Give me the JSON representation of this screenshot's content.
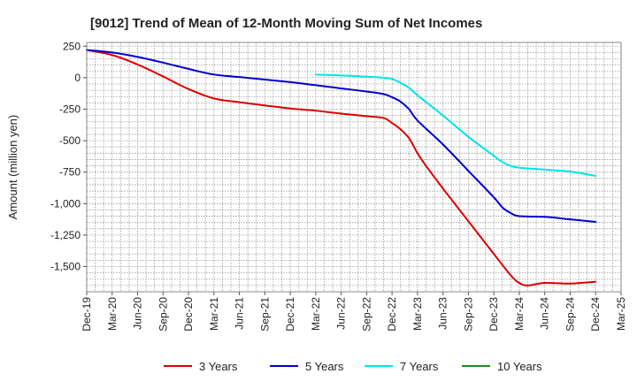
{
  "chart_data": {
    "type": "line",
    "title": "[9012]  Trend of Mean of 12-Month Moving Sum of Net Incomes",
    "xlabel": "",
    "ylabel": "Amount (million yen)",
    "x_ticks": [
      "Dec-19",
      "Mar-20",
      "Jun-20",
      "Sep-20",
      "Dec-20",
      "Mar-21",
      "Jun-21",
      "Sep-21",
      "Dec-21",
      "Mar-22",
      "Jun-22",
      "Sep-22",
      "Dec-22",
      "Mar-23",
      "Jun-23",
      "Sep-23",
      "Dec-23",
      "Mar-24",
      "Jun-24",
      "Sep-24",
      "Dec-24",
      "Mar-25"
    ],
    "y_ticks": [
      250,
      0,
      -250,
      -500,
      -750,
      -1000,
      -1250,
      -1500
    ],
    "y_tick_labels": [
      "250",
      "0",
      "-250",
      "-500",
      "-750",
      "-1,000",
      "-1,250",
      "-1,500"
    ],
    "ylim": [
      -1700,
      280
    ],
    "grid": true,
    "legend_position": "bottom",
    "series": [
      {
        "name": "3 Years",
        "color": "#dd0000",
        "points": [
          [
            "Dec-19",
            220
          ],
          [
            "Mar-20",
            180
          ],
          [
            "Jun-20",
            105
          ],
          [
            "Sep-20",
            10
          ],
          [
            "Dec-20",
            -90
          ],
          [
            "Mar-21",
            -165
          ],
          [
            "Jun-21",
            -195
          ],
          [
            "Sep-21",
            -220
          ],
          [
            "Dec-21",
            -245
          ],
          [
            "Mar-22",
            -262
          ],
          [
            "Jun-22",
            -285
          ],
          [
            "Sep-22",
            -305
          ],
          [
            "Nov-22",
            -320
          ],
          [
            "Dec-22",
            -360
          ],
          [
            "Jan-23",
            -410
          ],
          [
            "Feb-23",
            -480
          ],
          [
            "Mar-23",
            -600
          ],
          [
            "Apr-23",
            -700
          ],
          [
            "Jun-23",
            -880
          ],
          [
            "Sep-23",
            -1140
          ],
          [
            "Dec-23",
            -1400
          ],
          [
            "Feb-24",
            -1570
          ],
          [
            "Mar-24",
            -1630
          ],
          [
            "Apr-24",
            -1650
          ],
          [
            "Jun-24",
            -1630
          ],
          [
            "Sep-24",
            -1635
          ],
          [
            "Dec-24",
            -1620
          ]
        ]
      },
      {
        "name": "5 Years",
        "color": "#0000cc",
        "points": [
          [
            "Dec-19",
            220
          ],
          [
            "Mar-20",
            200
          ],
          [
            "Jun-20",
            165
          ],
          [
            "Sep-20",
            120
          ],
          [
            "Dec-20",
            70
          ],
          [
            "Mar-21",
            25
          ],
          [
            "Jun-21",
            5
          ],
          [
            "Sep-21",
            -15
          ],
          [
            "Dec-21",
            -35
          ],
          [
            "Mar-22",
            -60
          ],
          [
            "Jun-22",
            -85
          ],
          [
            "Sep-22",
            -110
          ],
          [
            "Nov-22",
            -130
          ],
          [
            "Dec-22",
            -155
          ],
          [
            "Jan-23",
            -190
          ],
          [
            "Feb-23",
            -250
          ],
          [
            "Mar-23",
            -340
          ],
          [
            "Jun-23",
            -530
          ],
          [
            "Sep-23",
            -740
          ],
          [
            "Dec-23",
            -950
          ],
          [
            "Jan-24",
            -1030
          ],
          [
            "Feb-24",
            -1075
          ],
          [
            "Mar-24",
            -1100
          ],
          [
            "Jun-24",
            -1105
          ],
          [
            "Sep-24",
            -1125
          ],
          [
            "Dec-24",
            -1145
          ]
        ]
      },
      {
        "name": "7 Years",
        "color": "#00e5e5",
        "points": [
          [
            "Mar-22",
            25
          ],
          [
            "Jun-22",
            18
          ],
          [
            "Sep-22",
            8
          ],
          [
            "Nov-22",
            0
          ],
          [
            "Dec-22",
            -10
          ],
          [
            "Jan-23",
            -40
          ],
          [
            "Feb-23",
            -80
          ],
          [
            "Mar-23",
            -140
          ],
          [
            "Jun-23",
            -300
          ],
          [
            "Sep-23",
            -470
          ],
          [
            "Dec-23",
            -620
          ],
          [
            "Jan-24",
            -670
          ],
          [
            "Feb-24",
            -700
          ],
          [
            "Mar-24",
            -715
          ],
          [
            "Jun-24",
            -730
          ],
          [
            "Sep-24",
            -745
          ],
          [
            "Dec-24",
            -780
          ]
        ]
      },
      {
        "name": "10 Years",
        "color": "#228b22",
        "points": []
      }
    ]
  }
}
